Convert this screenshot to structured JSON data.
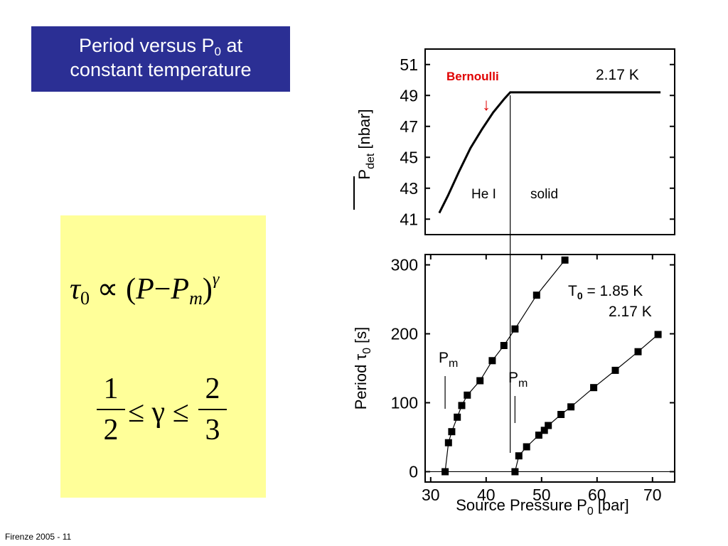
{
  "slide": {
    "title_prefix": "Period versus P",
    "title_sub": "0",
    "title_suffix": " at",
    "title_line2": "constant temperature",
    "footer": "Firenze 2005 - 11"
  },
  "formula": {
    "tau": "τ",
    "tau_sub": "0",
    "propto": "∝",
    "open": "(",
    "p": "P",
    "minus": "−",
    "pm": "P",
    "pm_sub": "m",
    "close": ")",
    "gamma_sup": "γ",
    "frac1_num": "1",
    "frac1_den": "2",
    "ineq": "≤ γ ≤",
    "frac2_num": "2",
    "frac2_den": "3"
  },
  "chart_data": [
    {
      "type": "line",
      "title": "",
      "xlim": [
        30,
        74
      ],
      "ylim": [
        40,
        52
      ],
      "ylabel_main": "P",
      "ylabel_sub": "det",
      "ylabel_unit": "[nbar]",
      "yticks": [
        41,
        43,
        45,
        47,
        49,
        51
      ],
      "series": [
        {
          "x": [
            32.5,
            34,
            36,
            38,
            40,
            42,
            44,
            45,
            47,
            50,
            55,
            60,
            65,
            70,
            71.5
          ],
          "y": [
            41.4,
            42.5,
            44.1,
            45.6,
            46.8,
            47.9,
            48.8,
            49.2,
            49.2,
            49.2,
            49.2,
            49.2,
            49.2,
            49.2,
            49.2
          ]
        }
      ],
      "annotations": {
        "temperature": "2.17 K",
        "bernoulli": "Bernoulli",
        "arrow": "↓",
        "phase_left": "He I",
        "phase_right": "solid"
      },
      "divider_x": 45,
      "arrow_color": "#e00000"
    },
    {
      "type": "scatter",
      "title": "",
      "xlim": [
        29,
        74
      ],
      "ylim": [
        -15,
        315
      ],
      "xticks": [
        30,
        40,
        50,
        60,
        70
      ],
      "yticks": [
        0,
        100,
        200,
        300
      ],
      "xlabel_main": "Source Pressure P",
      "xlabel_sub": "0",
      "xlabel_unit": "[bar]",
      "ylabel_main": "Period τ",
      "ylabel_sub": "0",
      "ylabel_unit": "[s]",
      "series": [
        {
          "name": "1.85 K",
          "x": [
            32.6,
            33.2,
            33.8,
            34.8,
            35.6,
            36.6,
            38.9,
            41.1,
            43.2,
            45.2,
            49.1,
            54.2
          ],
          "y": [
            0,
            42,
            58,
            79,
            96,
            111,
            132,
            161,
            183,
            207,
            256,
            307
          ]
        },
        {
          "name": "2.17 K",
          "x": [
            45.2,
            45.9,
            47.3,
            49.5,
            50.5,
            51.2,
            53.5,
            55.3,
            59.4,
            63.3,
            67.4,
            71.0
          ],
          "y": [
            0,
            23,
            36,
            53,
            60,
            67,
            83,
            94,
            122,
            147,
            174,
            199
          ]
        }
      ],
      "legend": {
        "t_label": "T",
        "t_sub": "0",
        "line1_rest": " = 1.85 K",
        "line2": "2.17 K"
      },
      "pm_label": "P",
      "pm_sub": "m",
      "pm_lines_x": [
        32.6,
        45.2
      ]
    }
  ]
}
